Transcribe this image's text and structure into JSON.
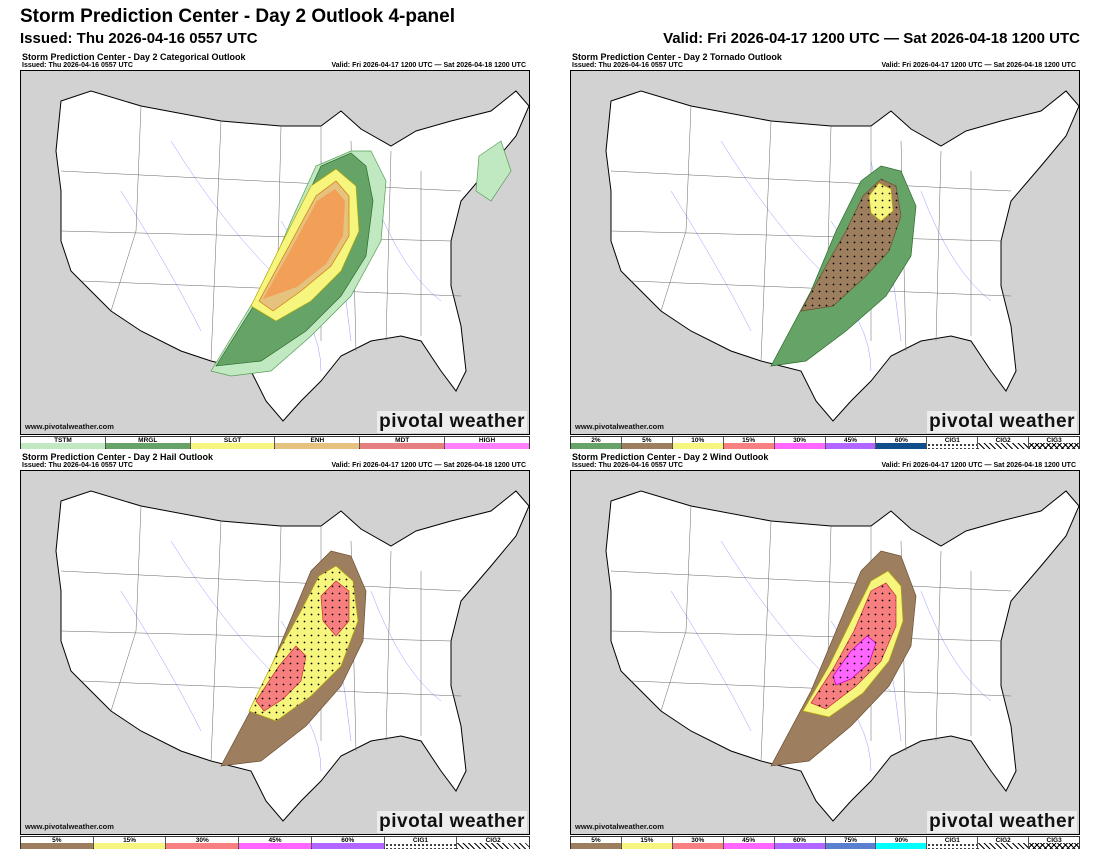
{
  "header": {
    "title": "Storm Prediction Center - Day 2 Outlook 4-panel",
    "issued": "Issued: Thu 2026-04-16 0557 UTC",
    "valid": "Valid: Fri 2026-04-17 1200 UTC — Sat 2026-04-18 1200 UTC"
  },
  "panels": [
    {
      "id": "categorical",
      "title": "Storm Prediction Center - Day 2 Categorical Outlook",
      "issued": "Issued: Thu 2026-04-16 0557 UTC",
      "valid": "Valid: Fri 2026-04-17 1200 UTC — Sat 2026-04-18 1200 UTC",
      "website": "www.pivotalweather.com",
      "watermark": "pivotal weather",
      "legend": [
        {
          "label": "TSTM",
          "color": "#c1e9c1"
        },
        {
          "label": "MRGL",
          "color": "#66a366"
        },
        {
          "label": "SLGT",
          "color": "#f6f67f"
        },
        {
          "label": "ENH",
          "color": "#e6c27f"
        },
        {
          "label": "MDT",
          "color": "#e67f7f"
        },
        {
          "label": "HIGH",
          "color": "#ff80ff"
        }
      ]
    },
    {
      "id": "tornado",
      "title": "Storm Prediction Center - Day 2 Tornado Outlook",
      "issued": "Issued: Thu 2026-04-16 0557 UTC",
      "valid": "Valid: Fri 2026-04-17 1200 UTC — Sat 2026-04-18 1200 UTC",
      "website": "www.pivotalweather.com",
      "watermark": "pivotal weather",
      "legend": [
        {
          "label": "2%",
          "color": "#66a366"
        },
        {
          "label": "5%",
          "color": "#9d7f60"
        },
        {
          "label": "10%",
          "color": "#f6f67f"
        },
        {
          "label": "15%",
          "color": "#f77f7f"
        },
        {
          "label": "30%",
          "color": "#ff66ff"
        },
        {
          "label": "45%",
          "color": "#b366ff"
        },
        {
          "label": "60%",
          "color": "#104e8b"
        },
        {
          "label": "CIG1",
          "color": "dotted"
        },
        {
          "label": "CIG2",
          "color": "hatch"
        },
        {
          "label": "CIG3",
          "color": "crosshatch"
        }
      ]
    },
    {
      "id": "hail",
      "title": "Storm Prediction Center - Day 2 Hail Outlook",
      "issued": "Issued: Thu 2026-04-16 0557 UTC",
      "valid": "Valid: Fri 2026-04-17 1200 UTC — Sat 2026-04-18 1200 UTC",
      "website": "www.pivotalweather.com",
      "watermark": "pivotal weather",
      "legend": [
        {
          "label": "5%",
          "color": "#9d7f60"
        },
        {
          "label": "15%",
          "color": "#f6f67f"
        },
        {
          "label": "30%",
          "color": "#f77f7f"
        },
        {
          "label": "45%",
          "color": "#ff66ff"
        },
        {
          "label": "60%",
          "color": "#b366ff"
        },
        {
          "label": "CIG1",
          "color": "dotted"
        },
        {
          "label": "CIG2",
          "color": "hatch"
        }
      ]
    },
    {
      "id": "wind",
      "title": "Storm Prediction Center - Day 2 Wind Outlook",
      "issued": "Issued: Thu 2026-04-16 0557 UTC",
      "valid": "Valid: Fri 2026-04-17 1200 UTC — Sat 2026-04-18 1200 UTC",
      "website": "www.pivotalweather.com",
      "watermark": "pivotal weather",
      "legend": [
        {
          "label": "5%",
          "color": "#9d7f60"
        },
        {
          "label": "15%",
          "color": "#f6f67f"
        },
        {
          "label": "30%",
          "color": "#f77f7f"
        },
        {
          "label": "45%",
          "color": "#ff66ff"
        },
        {
          "label": "60%",
          "color": "#b366ff"
        },
        {
          "label": "75%",
          "color": "#5b7fcf"
        },
        {
          "label": "90%",
          "color": "#00ffff"
        },
        {
          "label": "CIG1",
          "color": "dotted"
        },
        {
          "label": "CIG2",
          "color": "hatch"
        },
        {
          "label": "CIG3",
          "color": "crosshatch"
        }
      ]
    }
  ]
}
